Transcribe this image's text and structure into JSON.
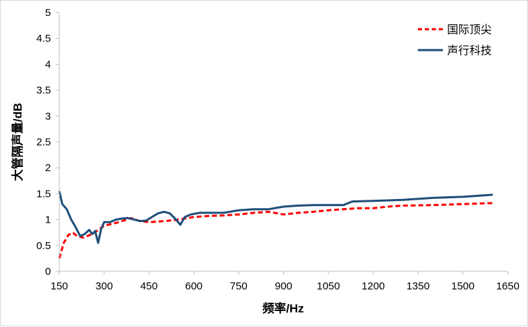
{
  "chart_data": {
    "type": "line",
    "title": "",
    "xlabel": "频率/Hz",
    "ylabel": "大管隔声量/dB",
    "xlim": [
      150,
      1650
    ],
    "ylim": [
      0,
      5
    ],
    "xticks": [
      150,
      300,
      450,
      600,
      750,
      900,
      1050,
      1200,
      1350,
      1500,
      1650
    ],
    "yticks": [
      0,
      0.5,
      1,
      1.5,
      2,
      2.5,
      3,
      3.5,
      4,
      4.5,
      5
    ],
    "grid": false,
    "legend_position": "top-right",
    "series": [
      {
        "name": "国际顶尖",
        "color": "#ff0000",
        "style": "dashed",
        "x": [
          150,
          165,
          180,
          195,
          210,
          230,
          260,
          300,
          350,
          390,
          420,
          450,
          500,
          550,
          600,
          650,
          700,
          750,
          800,
          850,
          900,
          950,
          1000,
          1050,
          1100,
          1150,
          1200,
          1250,
          1300,
          1400,
          1500,
          1600
        ],
        "y": [
          0.25,
          0.55,
          0.7,
          0.75,
          0.68,
          0.65,
          0.72,
          0.88,
          0.95,
          1.03,
          0.97,
          0.95,
          0.97,
          1.0,
          1.05,
          1.07,
          1.08,
          1.1,
          1.13,
          1.15,
          1.1,
          1.13,
          1.15,
          1.18,
          1.2,
          1.22,
          1.22,
          1.25,
          1.27,
          1.28,
          1.3,
          1.32
        ]
      },
      {
        "name": "声行科技",
        "color": "#1f4e79",
        "style": "solid",
        "x": [
          150,
          160,
          175,
          190,
          205,
          220,
          235,
          250,
          260,
          270,
          280,
          290,
          300,
          320,
          340,
          360,
          380,
          400,
          420,
          440,
          460,
          480,
          500,
          520,
          540,
          555,
          570,
          590,
          620,
          650,
          700,
          750,
          800,
          850,
          900,
          950,
          1000,
          1050,
          1100,
          1130,
          1200,
          1300,
          1400,
          1500,
          1600
        ],
        "y": [
          1.55,
          1.3,
          1.2,
          1.0,
          0.85,
          0.68,
          0.72,
          0.8,
          0.72,
          0.78,
          0.55,
          0.82,
          0.95,
          0.95,
          1.0,
          1.02,
          1.03,
          1.0,
          0.97,
          0.98,
          1.05,
          1.12,
          1.15,
          1.12,
          1.0,
          0.9,
          1.05,
          1.1,
          1.13,
          1.13,
          1.13,
          1.18,
          1.2,
          1.2,
          1.25,
          1.27,
          1.28,
          1.28,
          1.28,
          1.35,
          1.36,
          1.38,
          1.42,
          1.44,
          1.48
        ]
      }
    ]
  }
}
